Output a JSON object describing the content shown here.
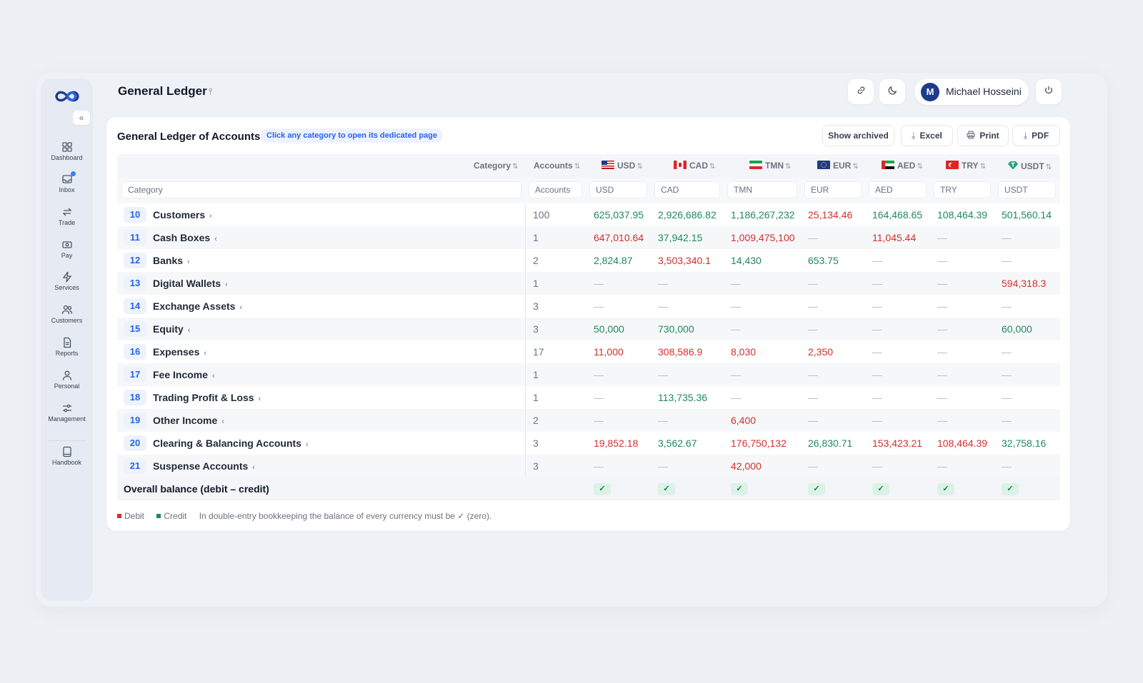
{
  "header": {
    "title": "General Ledger",
    "user_initial": "M",
    "user_name": "Michael Hosseini"
  },
  "sidebar": {
    "collapse_glyph": "«",
    "items": [
      {
        "label": "Dashboard",
        "icon": "dashboard-icon"
      },
      {
        "label": "Inbox",
        "icon": "inbox-icon"
      },
      {
        "label": "Trade",
        "icon": "trade-icon"
      },
      {
        "label": "Pay",
        "icon": "pay-icon"
      },
      {
        "label": "Services",
        "icon": "services-icon"
      },
      {
        "label": "Customers",
        "icon": "customers-icon"
      },
      {
        "label": "Reports",
        "icon": "reports-icon"
      },
      {
        "label": "Personal",
        "icon": "personal-icon"
      },
      {
        "label": "Management",
        "icon": "management-icon"
      },
      {
        "label": "Handbook",
        "icon": "handbook-icon"
      }
    ]
  },
  "card": {
    "title": "General Ledger of Accounts",
    "hint": "Click any category to open its dedicated page",
    "actions": {
      "show_archived": "Show archived",
      "excel": "Excel",
      "print": "Print",
      "pdf": "PDF"
    }
  },
  "table": {
    "headers": {
      "category": "Category",
      "accounts": "Accounts",
      "usd": "USD",
      "cad": "CAD",
      "tmn": "TMN",
      "eur": "EUR",
      "aed": "AED",
      "try": "TRY",
      "usdt": "USDT"
    },
    "filters": {
      "category": "Category",
      "accounts": "Accounts",
      "usd": "USD",
      "cad": "CAD",
      "tmn": "TMN",
      "eur": "EUR",
      "aed": "AED",
      "try": "TRY",
      "usdt": "USDT"
    },
    "rows": [
      {
        "code": "10",
        "name": "Customers",
        "accounts": "100",
        "usd": "625,037.95",
        "cad": "2,926,686.82",
        "tmn": "1,186,267,232",
        "eur": "25,134.46",
        "aed": "164,468.65",
        "try": "108,464.39",
        "usdt": "501,560.14"
      },
      {
        "code": "11",
        "name": "Cash Boxes",
        "accounts": "1",
        "usd": "647,010.64",
        "cad": "37,942.15",
        "tmn": "1,009,475,100",
        "eur": "—",
        "aed": "11,045.44",
        "try": "—",
        "usdt": "—"
      },
      {
        "code": "12",
        "name": "Banks",
        "accounts": "2",
        "usd": "2,824.87",
        "cad": "3,503,340.1",
        "tmn": "14,430",
        "eur": "653.75",
        "aed": "—",
        "try": "—",
        "usdt": "—"
      },
      {
        "code": "13",
        "name": "Digital Wallets",
        "accounts": "1",
        "usd": "—",
        "cad": "—",
        "tmn": "—",
        "eur": "—",
        "aed": "—",
        "try": "—",
        "usdt": "594,318.3"
      },
      {
        "code": "14",
        "name": "Exchange Assets",
        "accounts": "3",
        "usd": "—",
        "cad": "—",
        "tmn": "—",
        "eur": "—",
        "aed": "—",
        "try": "—",
        "usdt": "—"
      },
      {
        "code": "15",
        "name": "Equity",
        "accounts": "3",
        "usd": "50,000",
        "cad": "730,000",
        "tmn": "—",
        "eur": "—",
        "aed": "—",
        "try": "—",
        "usdt": "60,000"
      },
      {
        "code": "16",
        "name": "Expenses",
        "accounts": "17",
        "usd": "11,000",
        "cad": "308,586.9",
        "tmn": "8,030",
        "eur": "2,350",
        "aed": "—",
        "try": "—",
        "usdt": "—"
      },
      {
        "code": "17",
        "name": "Fee Income",
        "accounts": "1",
        "usd": "—",
        "cad": "—",
        "tmn": "—",
        "eur": "—",
        "aed": "—",
        "try": "—",
        "usdt": "—"
      },
      {
        "code": "18",
        "name": "Trading Profit & Loss",
        "accounts": "1",
        "usd": "—",
        "cad": "113,735.36",
        "tmn": "—",
        "eur": "—",
        "aed": "—",
        "try": "—",
        "usdt": "—"
      },
      {
        "code": "19",
        "name": "Other Income",
        "accounts": "2",
        "usd": "—",
        "cad": "—",
        "tmn": "6,400",
        "eur": "—",
        "aed": "—",
        "try": "—",
        "usdt": "—"
      },
      {
        "code": "20",
        "name": "Clearing & Balancing Accounts",
        "accounts": "3",
        "usd": "19,852.18",
        "cad": "3,562.67",
        "tmn": "176,750,132",
        "eur": "26,830.71",
        "aed": "153,423.21",
        "try": "108,464.39",
        "usdt": "32,758.16"
      },
      {
        "code": "21",
        "name": "Suspense Accounts",
        "accounts": "3",
        "usd": "—",
        "cad": "—",
        "tmn": "42,000",
        "eur": "—",
        "aed": "—",
        "try": "—",
        "usdt": "—"
      }
    ],
    "balance_label": "Overall balance (debit – credit)",
    "balance_mark": "✓"
  },
  "legend": {
    "debit": "Debit",
    "credit": "Credit",
    "note": "In double-entry bookkeeping the balance of every currency must be ✓ (zero)."
  },
  "colors": {
    "debit": "#d32f2f",
    "credit": "#1f8a5b",
    "accent": "#2563eb"
  }
}
